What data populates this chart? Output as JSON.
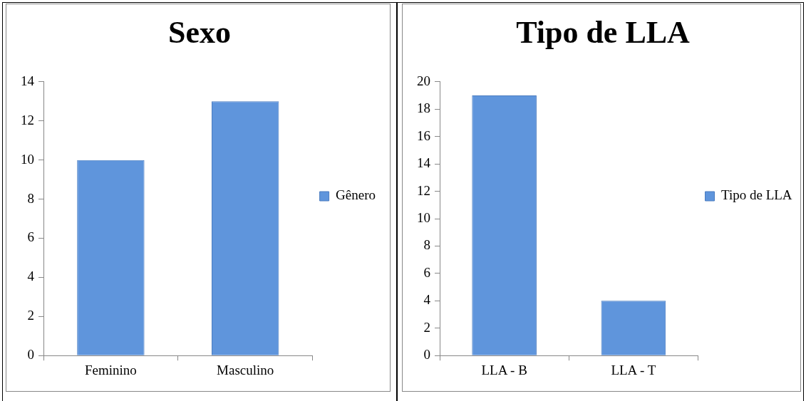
{
  "chart_data": [
    {
      "type": "bar",
      "title": "Sexo",
      "categories": [
        "Feminino",
        "Masculino"
      ],
      "series": [
        {
          "name": "Gênero",
          "color": "#5f95dc",
          "values": [
            10,
            13
          ]
        }
      ],
      "ylim": [
        0,
        14
      ],
      "yticks": [
        0,
        2,
        4,
        6,
        8,
        10,
        12,
        14
      ],
      "grid": false,
      "legend": "right"
    },
    {
      "type": "bar",
      "title": "Tipo de LLA",
      "categories": [
        "LLA - B",
        "LLA - T"
      ],
      "series": [
        {
          "name": "Tipo de LLA",
          "color": "#5f95dc",
          "values": [
            19,
            4
          ]
        }
      ],
      "ylim": [
        0,
        20
      ],
      "yticks": [
        0,
        2,
        4,
        6,
        8,
        10,
        12,
        14,
        16,
        18,
        20
      ],
      "grid": false,
      "legend": "right"
    }
  ]
}
